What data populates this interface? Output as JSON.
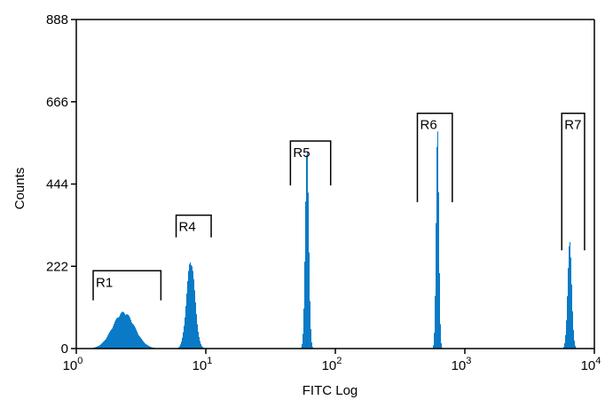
{
  "chart_data": {
    "type": "histogram",
    "xlabel": "FITC Log",
    "ylabel": "Counts",
    "x_scale": "log",
    "xlim": [
      1,
      10000
    ],
    "ylim": [
      0,
      888
    ],
    "x_ticks": [
      {
        "value": 1,
        "base": "10",
        "exp": "0"
      },
      {
        "value": 10,
        "base": "10",
        "exp": "1"
      },
      {
        "value": 100,
        "base": "10",
        "exp": "2"
      },
      {
        "value": 1000,
        "base": "10",
        "exp": "3"
      },
      {
        "value": 10000,
        "base": "10",
        "exp": "4"
      }
    ],
    "y_ticks": [
      {
        "value": 0,
        "label": "0"
      },
      {
        "value": 222,
        "label": "222"
      },
      {
        "value": 444,
        "label": "444"
      },
      {
        "value": 666,
        "label": "666"
      },
      {
        "value": 888,
        "label": "888"
      }
    ],
    "color": "#0a7ac6",
    "peaks": [
      {
        "center": 2.3,
        "height": 100,
        "log_sigma": 0.085
      },
      {
        "center": 7.6,
        "height": 245,
        "log_sigma": 0.032
      },
      {
        "center": 60,
        "height": 545,
        "log_sigma": 0.014
      },
      {
        "center": 610,
        "height": 600,
        "log_sigma": 0.011
      },
      {
        "center": 6400,
        "height": 290,
        "log_sigma": 0.016
      }
    ],
    "regions": [
      {
        "name": "R1",
        "x_start": 1.35,
        "x_end": 4.5,
        "bar_level": 210,
        "tick_bottom": 130
      },
      {
        "name": "R4",
        "x_start": 5.9,
        "x_end": 11,
        "bar_level": 360,
        "tick_bottom": 300
      },
      {
        "name": "R5",
        "x_start": 45,
        "x_end": 92,
        "bar_level": 560,
        "tick_bottom": 440
      },
      {
        "name": "R6",
        "x_start": 430,
        "x_end": 800,
        "bar_level": 635,
        "tick_bottom": 395
      },
      {
        "name": "R7",
        "x_start": 5600,
        "x_end": 8400,
        "bar_level": 635,
        "tick_bottom": 265
      }
    ]
  }
}
